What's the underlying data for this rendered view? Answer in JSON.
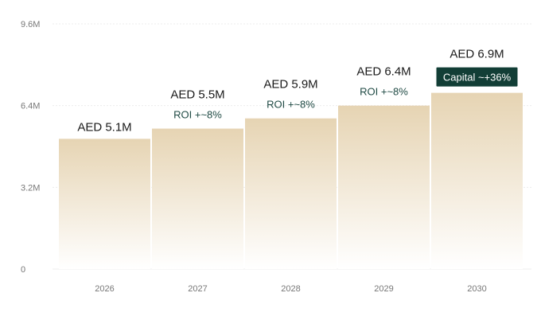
{
  "chart_data": {
    "type": "bar",
    "categories": [
      "2026",
      "2027",
      "2028",
      "2029",
      "2030"
    ],
    "values": [
      5.1,
      5.5,
      5.9,
      6.4,
      6.9
    ],
    "value_labels": [
      "AED 5.1M",
      "AED 5.5M",
      "AED 5.9M",
      "AED 6.4M",
      "AED 6.9M"
    ],
    "annotations": [
      "",
      "ROI +~8%",
      "ROI +~8%",
      "ROI +~8%",
      "Capital ~+36%"
    ],
    "y_ticks": [
      0,
      3.2,
      6.4,
      9.6
    ],
    "y_tick_labels": [
      "0",
      "3.2M",
      "6.4M",
      "9.6M"
    ],
    "ylim": [
      0,
      9.6
    ],
    "title": "",
    "xlabel": "",
    "ylabel": "",
    "grid": true,
    "colors": {
      "bar_top": "#e6d4b3",
      "bar_bottom": "#ffffff",
      "annotation": "#1f4a44",
      "badge_bg": "#123e36",
      "badge_text": "#ffffff",
      "value_label": "#1a1a1a",
      "grid": "#ececec",
      "tick": "#777777"
    }
  }
}
